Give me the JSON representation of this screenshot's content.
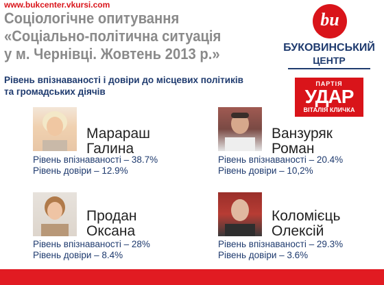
{
  "header": {
    "url": "www.bukcenter.vkursi.com",
    "title_lines": [
      "Соціологічне опитування",
      "«Соціально-політична ситуація",
      "у м. Чернівці. Жовтень 2013 р.»"
    ],
    "logo_initials": "bu",
    "logo_name_lines": [
      "БУКОВИНСЬКИЙ",
      "ЦЕНТР"
    ]
  },
  "subtitle_lines": [
    "Рівень впізнаваності і довіри до місцевих політиків",
    "та громадських діячів"
  ],
  "party": {
    "top": "ПАРТІЯ",
    "name": "УДАР",
    "bottom": "ВІТАЛІЯ КЛИЧКА"
  },
  "persons": [
    {
      "surname": "Марараш",
      "firstname": "Галина",
      "recognition": "Рівень впізнаваності – 38.7%",
      "trust": "Рівень довіри – 12.9%"
    },
    {
      "surname": "Ванзуряк",
      "firstname": "Роман",
      "recognition": "Рівень впізнаваності – 20.4%",
      "trust": "Рівень довіри – 10,2%"
    },
    {
      "surname": "Продан",
      "firstname": "Оксана",
      "recognition": "Рівень впізнаваності – 28%",
      "trust": "Рівень довіри – 8.4%"
    },
    {
      "surname": "Коломієць",
      "firstname": "Олексій",
      "recognition": "Рівень впізнаваності – 29.3%",
      "trust": "Рівень довіри – 3.6%"
    }
  ]
}
